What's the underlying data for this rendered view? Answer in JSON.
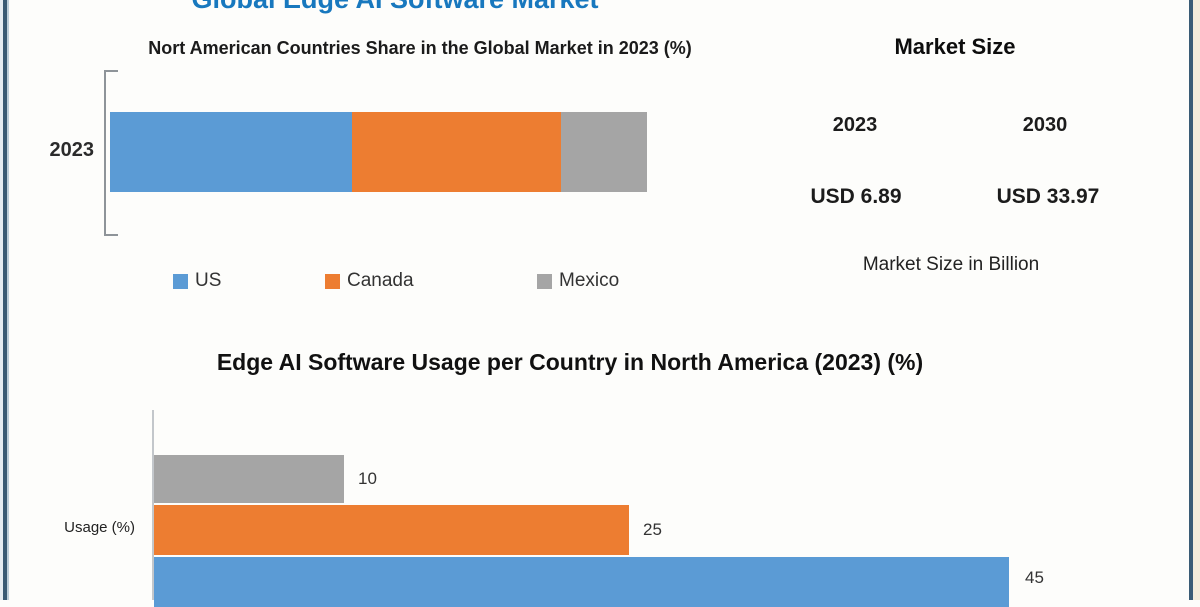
{
  "page": {
    "main_title": "Global Edge AI Software Market"
  },
  "colors": {
    "us": "#5b9bd5",
    "canada": "#ed7d31",
    "mexico": "#a5a5a5",
    "title_blue": "#1878be",
    "frame_border": "#3a5c75"
  },
  "market_size_panel": {
    "title": "Market Size",
    "year_left": "2023",
    "year_right": "2030",
    "value_left": "USD 6.89",
    "value_right": "USD 33.97",
    "note": "Market Size in Billion"
  },
  "chart_data": [
    {
      "type": "bar",
      "subtype": "stacked-horizontal",
      "title": "Nort American Countries Share in the Global Market in 2023 (%)",
      "categories": [
        "2023"
      ],
      "series": [
        {
          "name": "US",
          "value": 45,
          "color": "#5b9bd5"
        },
        {
          "name": "Canada",
          "value": 39,
          "color": "#ed7d31"
        },
        {
          "name": "Mexico",
          "value": 16,
          "color": "#a5a5a5"
        }
      ],
      "xlim": [
        0,
        100
      ],
      "grid": false,
      "legend_position": "bottom",
      "legend": [
        "US",
        "Canada",
        "Mexico"
      ]
    },
    {
      "type": "bar",
      "subtype": "horizontal",
      "title": "Edge AI Software Usage per Country in North America (2023) (%)",
      "ylabel": "Usage (%)",
      "categories": [
        "Mexico",
        "Canada",
        "US"
      ],
      "values": [
        10,
        25,
        45
      ],
      "colors": [
        "#a5a5a5",
        "#ed7d31",
        "#5b9bd5"
      ],
      "xlim": [
        0,
        45
      ],
      "grid": false,
      "data_labels_shown": true
    }
  ]
}
